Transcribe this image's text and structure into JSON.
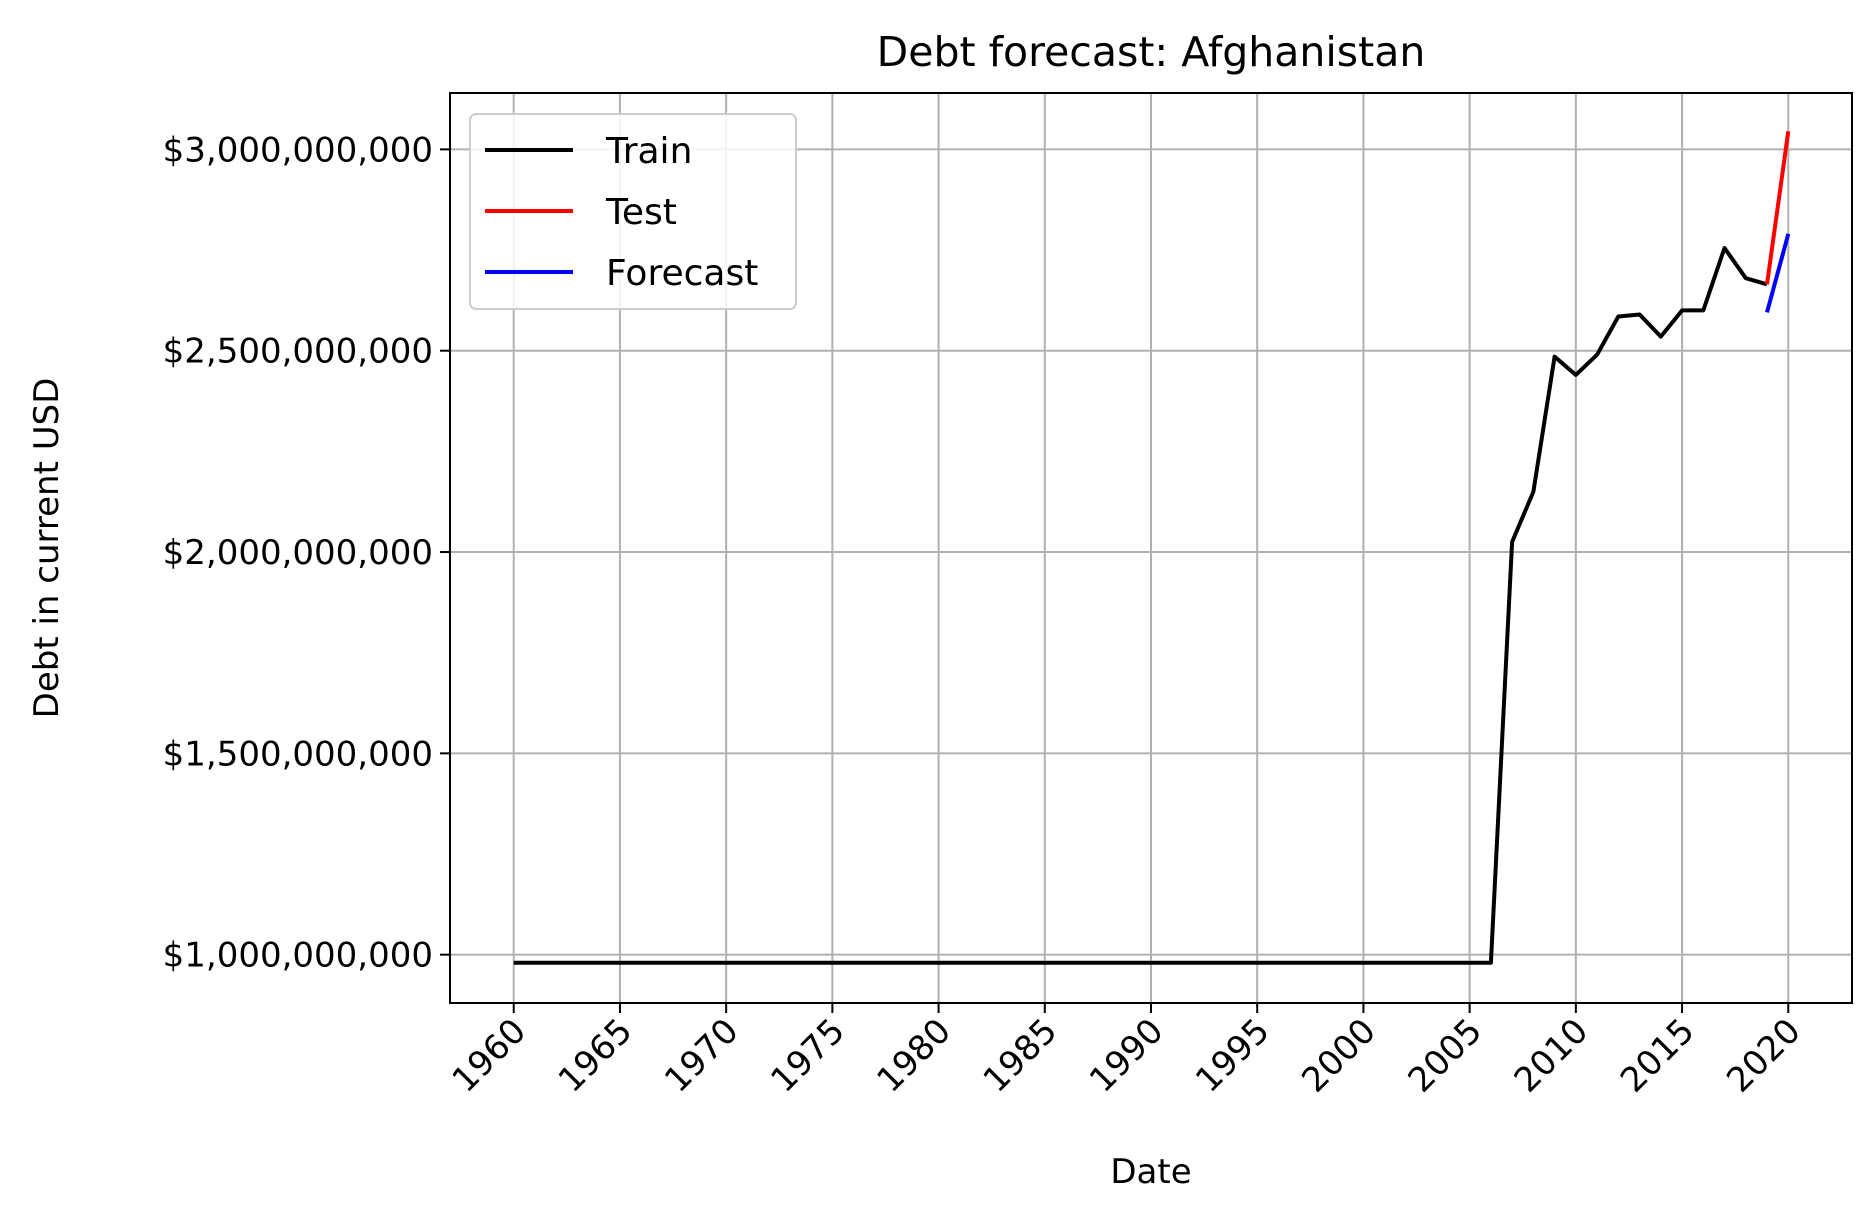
{
  "chart_data": {
    "type": "line",
    "title": "Debt forecast: Afghanistan",
    "xlabel": "Date",
    "ylabel": "Debt in current USD",
    "xlim": [
      1957,
      2023
    ],
    "ylim": [
      880000000,
      3140000000
    ],
    "x_ticks": [
      1960,
      1965,
      1970,
      1975,
      1980,
      1985,
      1990,
      1995,
      2000,
      2005,
      2010,
      2015,
      2020
    ],
    "x_tick_labels": [
      "1960",
      "1965",
      "1970",
      "1975",
      "1980",
      "1985",
      "1990",
      "1995",
      "2000",
      "2005",
      "2010",
      "2015",
      "2020"
    ],
    "y_ticks": [
      1000000000,
      1500000000,
      2000000000,
      2500000000,
      3000000000
    ],
    "y_tick_labels": [
      "$1,000,000,000",
      "$1,500,000,000",
      "$2,000,000,000",
      "$2,500,000,000",
      "$3,000,000,000"
    ],
    "grid": true,
    "legend_position": "top-left",
    "series": [
      {
        "name": "Train",
        "color": "#000000",
        "x": [
          1960,
          1961,
          1962,
          1963,
          1964,
          1965,
          1966,
          1967,
          1968,
          1969,
          1970,
          1971,
          1972,
          1973,
          1974,
          1975,
          1976,
          1977,
          1978,
          1979,
          1980,
          1981,
          1982,
          1983,
          1984,
          1985,
          1986,
          1987,
          1988,
          1989,
          1990,
          1991,
          1992,
          1993,
          1994,
          1995,
          1996,
          1997,
          1998,
          1999,
          2000,
          2001,
          2002,
          2003,
          2004,
          2005,
          2006,
          2007,
          2008,
          2009,
          2010,
          2011,
          2012,
          2013,
          2014,
          2015,
          2016,
          2017,
          2018,
          2019
        ],
        "values": [
          980000000,
          980000000,
          980000000,
          980000000,
          980000000,
          980000000,
          980000000,
          980000000,
          980000000,
          980000000,
          980000000,
          980000000,
          980000000,
          980000000,
          980000000,
          980000000,
          980000000,
          980000000,
          980000000,
          980000000,
          980000000,
          980000000,
          980000000,
          980000000,
          980000000,
          980000000,
          980000000,
          980000000,
          980000000,
          980000000,
          980000000,
          980000000,
          980000000,
          980000000,
          980000000,
          980000000,
          980000000,
          980000000,
          980000000,
          980000000,
          980000000,
          980000000,
          980000000,
          980000000,
          980000000,
          980000000,
          980000000,
          2025000000,
          2150000000,
          2485000000,
          2440000000,
          2490000000,
          2585000000,
          2590000000,
          2535000000,
          2600000000,
          2600000000,
          2755000000,
          2680000000,
          2665000000
        ]
      },
      {
        "name": "Test",
        "color": "#ff0000",
        "x": [
          2019,
          2020
        ],
        "values": [
          2665000000,
          3045000000
        ]
      },
      {
        "name": "Forecast",
        "color": "#0000ff",
        "x": [
          2019,
          2020
        ],
        "values": [
          2595000000,
          2790000000
        ]
      }
    ]
  }
}
